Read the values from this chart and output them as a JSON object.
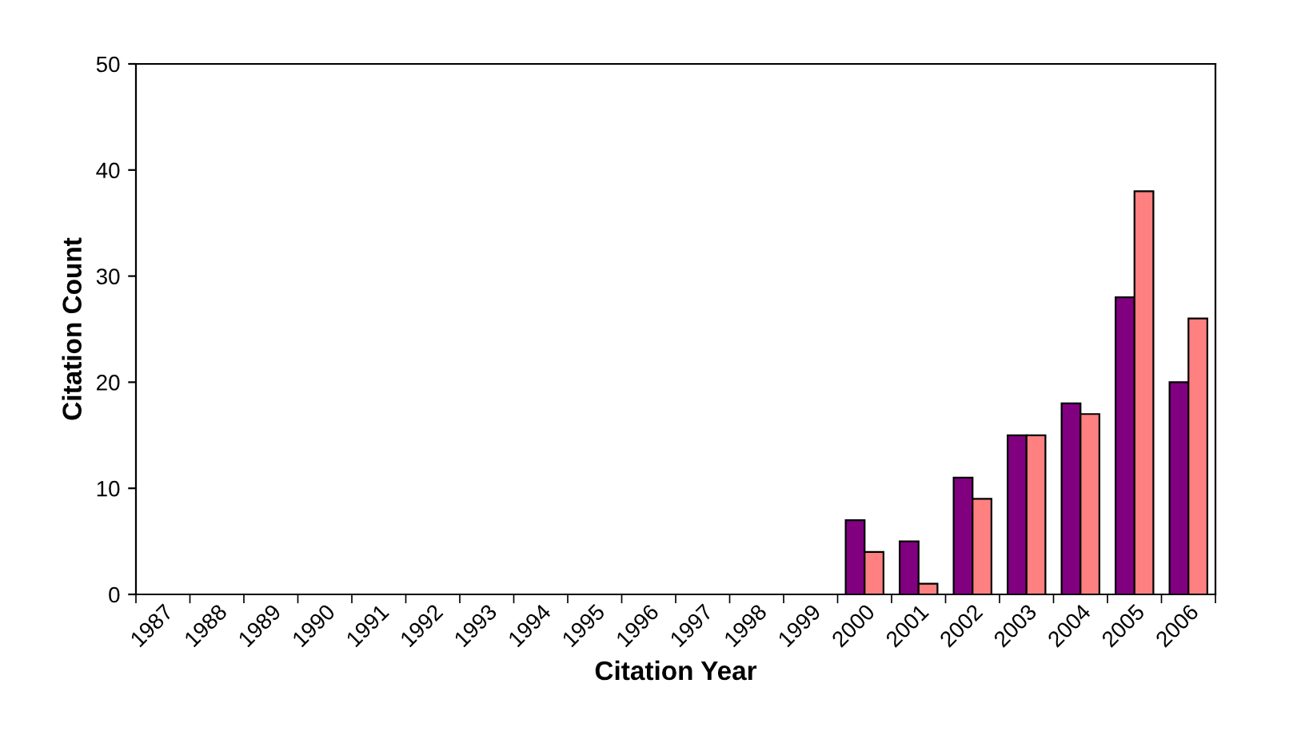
{
  "chart_data": {
    "type": "bar",
    "xlabel": "Citation Year",
    "ylabel": "Citation Count",
    "categories": [
      "1987",
      "1988",
      "1989",
      "1990",
      "1991",
      "1992",
      "1993",
      "1994",
      "1995",
      "1996",
      "1997",
      "1998",
      "1999",
      "2000",
      "2001",
      "2002",
      "2003",
      "2004",
      "2005",
      "2006"
    ],
    "series": [
      {
        "color": "#800080",
        "values": [
          0,
          0,
          0,
          0,
          0,
          0,
          0,
          0,
          0,
          0,
          0,
          0,
          0,
          7,
          5,
          11,
          15,
          18,
          28,
          20
        ]
      },
      {
        "color": "#ff8080",
        "values": [
          0,
          0,
          0,
          0,
          0,
          0,
          0,
          0,
          0,
          0,
          0,
          0,
          0,
          4,
          1,
          9,
          15,
          17,
          38,
          26
        ]
      }
    ],
    "ylim": [
      0,
      50
    ],
    "yticks": [
      0,
      10,
      20,
      30,
      40,
      50
    ],
    "grid": false,
    "legend": false
  }
}
